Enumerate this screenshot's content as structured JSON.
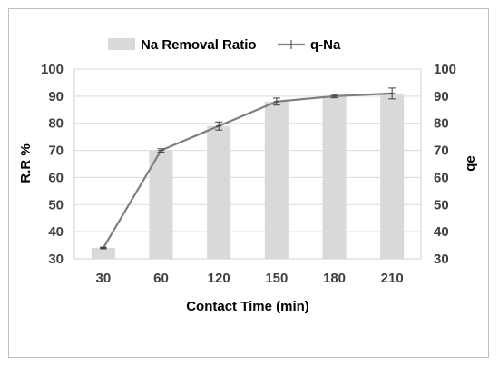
{
  "chart_data": {
    "type": "bar+line",
    "categories": [
      "30",
      "60",
      "120",
      "150",
      "180",
      "210"
    ],
    "series": [
      {
        "name": "Na Removal Ratio",
        "type": "bar",
        "axis": "left",
        "values": [
          34,
          70,
          79,
          88,
          90,
          91
        ]
      },
      {
        "name": "q-Na",
        "type": "line",
        "axis": "right",
        "values": [
          34,
          70,
          79,
          88,
          90,
          91
        ],
        "error": [
          0.3,
          0.6,
          1.5,
          1.3,
          0.6,
          2.0
        ]
      }
    ],
    "xlabel": "Contact Time (min)",
    "ylabel": "R.R %",
    "y2label": "qe",
    "ylim": [
      30,
      100
    ],
    "y2lim": [
      30,
      100
    ],
    "yticks": [
      30,
      40,
      50,
      60,
      70,
      80,
      90,
      100
    ],
    "grid": true,
    "legend": "top-center",
    "colors": {
      "bar": "#d9d9d9",
      "line": "#7f7f7f",
      "grid": "#d9d9d9",
      "text": "#404040"
    }
  }
}
